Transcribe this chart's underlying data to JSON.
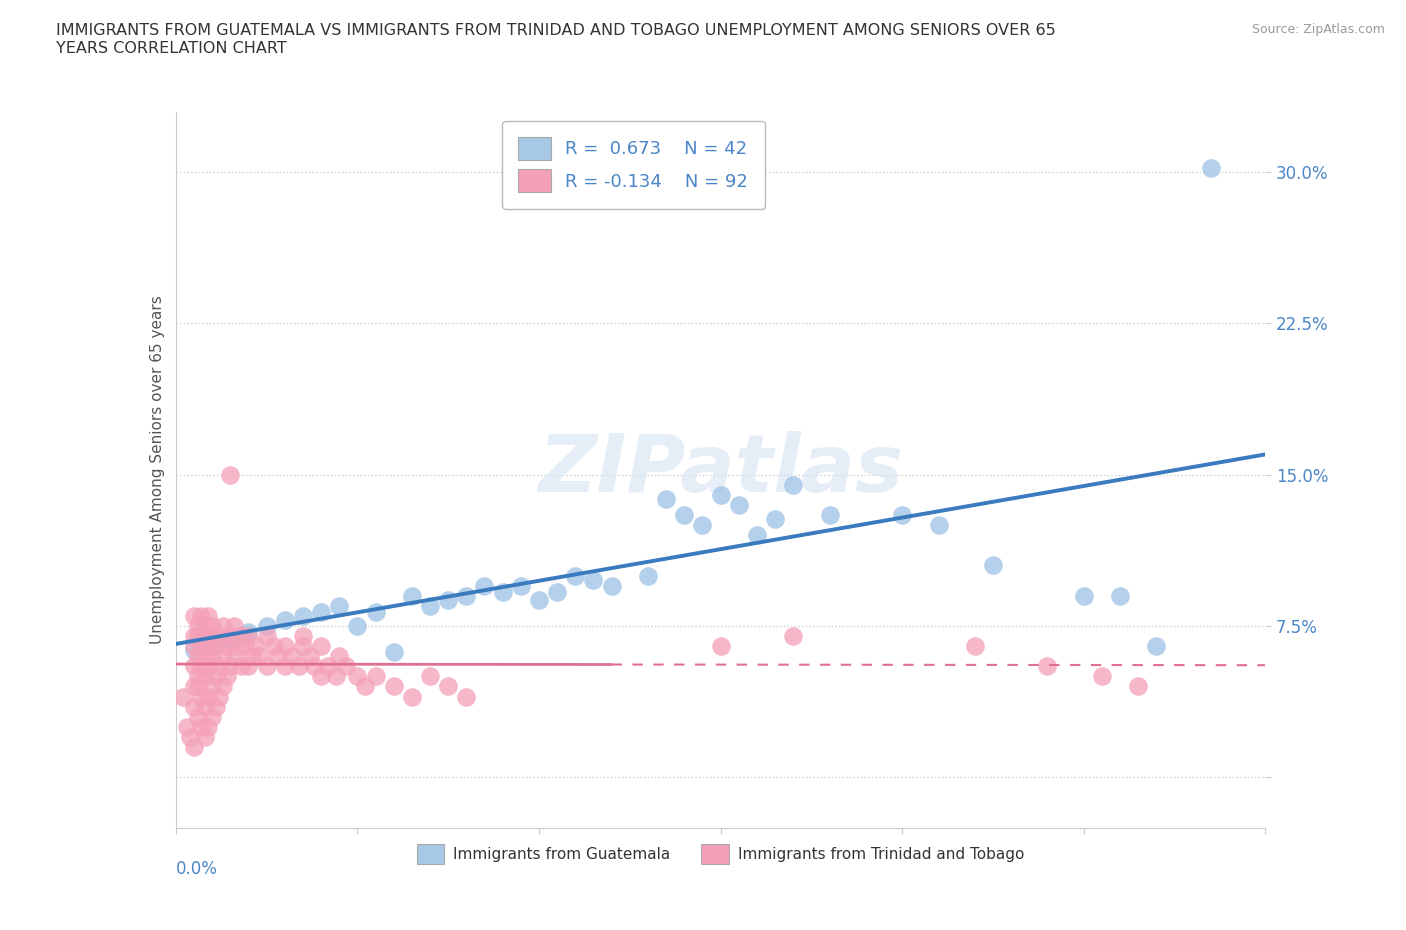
{
  "title": "IMMIGRANTS FROM GUATEMALA VS IMMIGRANTS FROM TRINIDAD AND TOBAGO UNEMPLOYMENT AMONG SENIORS OVER 65\nYEARS CORRELATION CHART",
  "source_text": "Source: ZipAtlas.com",
  "ylabel": "Unemployment Among Seniors over 65 years",
  "legend_labels": [
    "Immigrants from Guatemala",
    "Immigrants from Trinidad and Tobago"
  ],
  "R_blue": 0.673,
  "N_blue": 42,
  "R_pink": -0.134,
  "N_pink": 92,
  "xlim": [
    0.0,
    0.3
  ],
  "ylim": [
    -0.025,
    0.33
  ],
  "yticks": [
    0.0,
    0.075,
    0.15,
    0.225,
    0.3
  ],
  "ytick_labels": [
    "",
    "7.5%",
    "15.0%",
    "22.5%",
    "30.0%"
  ],
  "watermark": "ZIPatlas",
  "blue_color": "#a8c8e8",
  "blue_line_color": "#3a7abf",
  "pink_color": "#f4a0b8",
  "pink_line_color": "#e07090",
  "blue_scatter": [
    [
      0.005,
      0.063
    ],
    [
      0.01,
      0.065
    ],
    [
      0.015,
      0.068
    ],
    [
      0.018,
      0.07
    ],
    [
      0.02,
      0.072
    ],
    [
      0.025,
      0.075
    ],
    [
      0.03,
      0.078
    ],
    [
      0.035,
      0.08
    ],
    [
      0.04,
      0.082
    ],
    [
      0.045,
      0.085
    ],
    [
      0.05,
      0.075
    ],
    [
      0.055,
      0.082
    ],
    [
      0.06,
      0.062
    ],
    [
      0.065,
      0.09
    ],
    [
      0.07,
      0.085
    ],
    [
      0.075,
      0.088
    ],
    [
      0.08,
      0.09
    ],
    [
      0.085,
      0.095
    ],
    [
      0.09,
      0.092
    ],
    [
      0.095,
      0.095
    ],
    [
      0.1,
      0.088
    ],
    [
      0.105,
      0.092
    ],
    [
      0.11,
      0.1
    ],
    [
      0.115,
      0.098
    ],
    [
      0.12,
      0.095
    ],
    [
      0.13,
      0.1
    ],
    [
      0.135,
      0.138
    ],
    [
      0.14,
      0.13
    ],
    [
      0.145,
      0.125
    ],
    [
      0.15,
      0.14
    ],
    [
      0.155,
      0.135
    ],
    [
      0.16,
      0.12
    ],
    [
      0.165,
      0.128
    ],
    [
      0.17,
      0.145
    ],
    [
      0.18,
      0.13
    ],
    [
      0.2,
      0.13
    ],
    [
      0.21,
      0.125
    ],
    [
      0.225,
      0.105
    ],
    [
      0.25,
      0.09
    ],
    [
      0.26,
      0.09
    ],
    [
      0.27,
      0.065
    ],
    [
      0.285,
      0.302
    ]
  ],
  "pink_scatter": [
    [
      0.002,
      0.04
    ],
    [
      0.003,
      0.025
    ],
    [
      0.004,
      0.02
    ],
    [
      0.005,
      0.015
    ],
    [
      0.005,
      0.035
    ],
    [
      0.005,
      0.055
    ],
    [
      0.005,
      0.065
    ],
    [
      0.005,
      0.07
    ],
    [
      0.006,
      0.03
    ],
    [
      0.006,
      0.045
    ],
    [
      0.006,
      0.06
    ],
    [
      0.006,
      0.07
    ],
    [
      0.007,
      0.025
    ],
    [
      0.007,
      0.04
    ],
    [
      0.007,
      0.055
    ],
    [
      0.007,
      0.065
    ],
    [
      0.008,
      0.02
    ],
    [
      0.008,
      0.035
    ],
    [
      0.008,
      0.05
    ],
    [
      0.008,
      0.06
    ],
    [
      0.008,
      0.07
    ],
    [
      0.009,
      0.025
    ],
    [
      0.009,
      0.04
    ],
    [
      0.009,
      0.055
    ],
    [
      0.009,
      0.065
    ],
    [
      0.01,
      0.03
    ],
    [
      0.01,
      0.045
    ],
    [
      0.01,
      0.06
    ],
    [
      0.01,
      0.07
    ],
    [
      0.011,
      0.035
    ],
    [
      0.011,
      0.05
    ],
    [
      0.011,
      0.065
    ],
    [
      0.012,
      0.04
    ],
    [
      0.012,
      0.055
    ],
    [
      0.012,
      0.07
    ],
    [
      0.013,
      0.045
    ],
    [
      0.013,
      0.06
    ],
    [
      0.013,
      0.075
    ],
    [
      0.014,
      0.05
    ],
    [
      0.014,
      0.065
    ],
    [
      0.015,
      0.055
    ],
    [
      0.015,
      0.07
    ],
    [
      0.015,
      0.15
    ],
    [
      0.016,
      0.06
    ],
    [
      0.016,
      0.075
    ],
    [
      0.017,
      0.065
    ],
    [
      0.018,
      0.07
    ],
    [
      0.018,
      0.055
    ],
    [
      0.019,
      0.065
    ],
    [
      0.02,
      0.07
    ],
    [
      0.02,
      0.055
    ],
    [
      0.021,
      0.06
    ],
    [
      0.022,
      0.065
    ],
    [
      0.023,
      0.06
    ],
    [
      0.025,
      0.055
    ],
    [
      0.025,
      0.07
    ],
    [
      0.027,
      0.065
    ],
    [
      0.028,
      0.06
    ],
    [
      0.03,
      0.055
    ],
    [
      0.03,
      0.065
    ],
    [
      0.032,
      0.06
    ],
    [
      0.034,
      0.055
    ],
    [
      0.035,
      0.065
    ],
    [
      0.035,
      0.07
    ],
    [
      0.037,
      0.06
    ],
    [
      0.038,
      0.055
    ],
    [
      0.04,
      0.05
    ],
    [
      0.04,
      0.065
    ],
    [
      0.042,
      0.055
    ],
    [
      0.044,
      0.05
    ],
    [
      0.045,
      0.06
    ],
    [
      0.047,
      0.055
    ],
    [
      0.05,
      0.05
    ],
    [
      0.052,
      0.045
    ],
    [
      0.055,
      0.05
    ],
    [
      0.06,
      0.045
    ],
    [
      0.065,
      0.04
    ],
    [
      0.07,
      0.05
    ],
    [
      0.075,
      0.045
    ],
    [
      0.08,
      0.04
    ],
    [
      0.15,
      0.065
    ],
    [
      0.17,
      0.07
    ],
    [
      0.22,
      0.065
    ],
    [
      0.24,
      0.055
    ],
    [
      0.255,
      0.05
    ],
    [
      0.265,
      0.045
    ],
    [
      0.005,
      0.08
    ],
    [
      0.006,
      0.075
    ],
    [
      0.007,
      0.08
    ],
    [
      0.008,
      0.075
    ],
    [
      0.009,
      0.08
    ],
    [
      0.01,
      0.075
    ],
    [
      0.005,
      0.045
    ],
    [
      0.006,
      0.05
    ]
  ]
}
